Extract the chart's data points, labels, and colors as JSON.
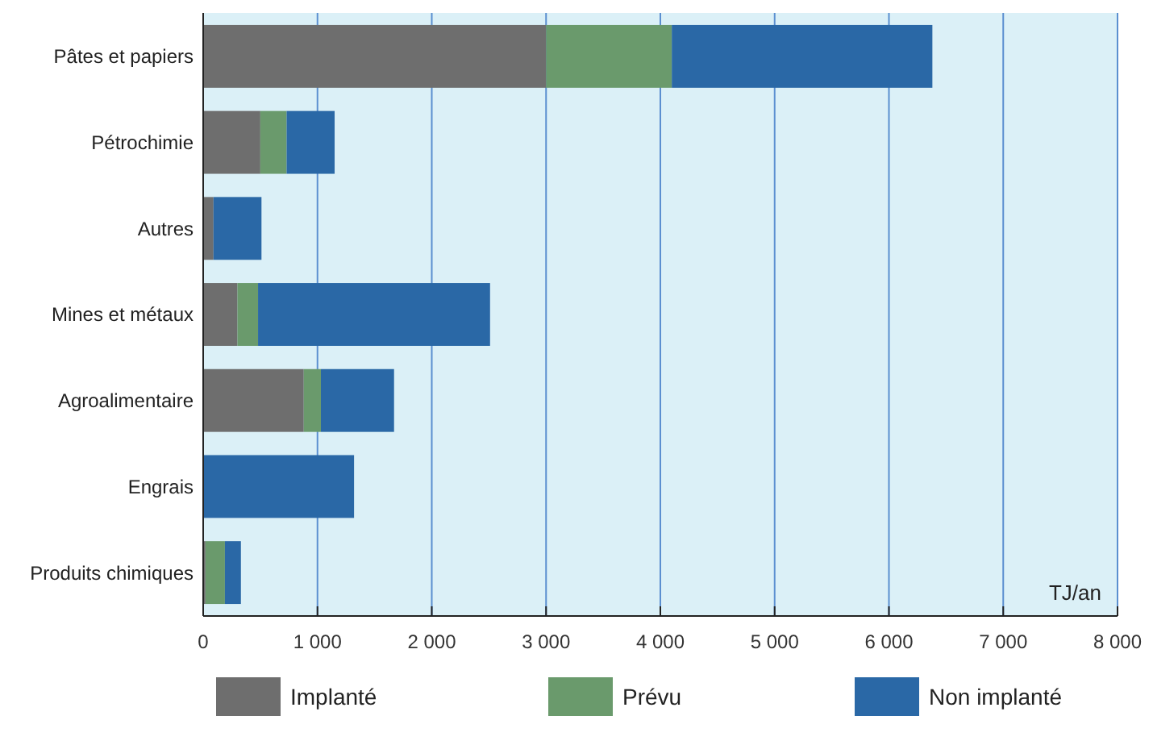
{
  "chart_data": {
    "type": "bar",
    "orientation": "horizontal",
    "stacked": true,
    "categories": [
      "Pâtes et papiers",
      "Pétrochimie",
      "Autres",
      "Mines et métaux",
      "Agroalimentaire",
      "Engrais",
      "Produits chimiques"
    ],
    "series": [
      {
        "name": "Implanté",
        "color": "#6e6e6e",
        "values": [
          3000,
          500,
          90,
          300,
          880,
          0,
          20
        ]
      },
      {
        "name": "Prévu",
        "color": "#6a9a6c",
        "values": [
          1100,
          230,
          0,
          180,
          150,
          0,
          170
        ]
      },
      {
        "name": "Non implanté",
        "color": "#2a68a6",
        "values": [
          2280,
          420,
          420,
          2030,
          640,
          1320,
          140
        ]
      }
    ],
    "xlim": [
      0,
      8000
    ],
    "xticks": [
      0,
      {
        "value": 1000,
        "label": "1 000"
      },
      {
        "value": 2000,
        "label": "2 000"
      },
      {
        "value": 3000,
        "label": "3 000"
      },
      {
        "value": 4000,
        "label": "4 000"
      },
      {
        "value": 5000,
        "label": "5 000"
      },
      {
        "value": 6000,
        "label": "6 000"
      },
      {
        "value": 7000,
        "label": "7 000"
      },
      {
        "value": 8000,
        "label": "8 000"
      }
    ],
    "xlabel": "TJ/an",
    "grid": "x",
    "legend": "bottom"
  }
}
